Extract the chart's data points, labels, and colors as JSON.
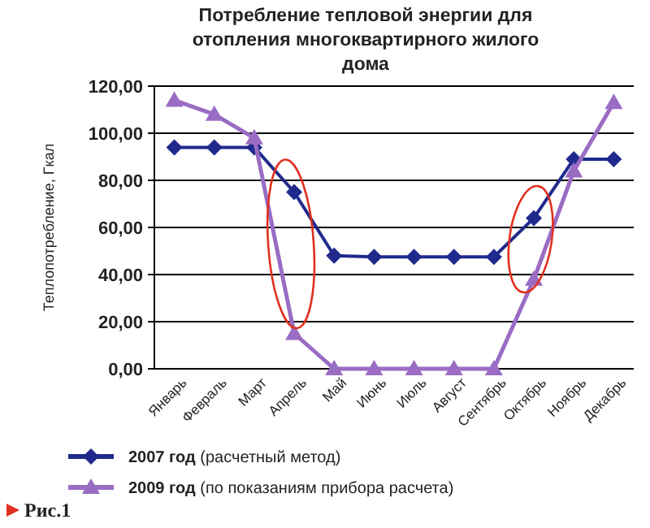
{
  "chart_data": {
    "type": "line",
    "title": "Потребление тепловой энергии для отопления многоквартирного жилого дома",
    "ylabel": "Теплопотребление, Гкал",
    "categories": [
      "Январь",
      "Февраль",
      "Март",
      "Апрель",
      "Май",
      "Июнь",
      "Июль",
      "Август",
      "Сентябрь",
      "Октябрь",
      "Ноябрь",
      "Декабрь"
    ],
    "series": [
      {
        "name": "2007 год (расчетный метод)",
        "color": "#1f2a8c",
        "marker": "diamond",
        "values": [
          94,
          94,
          94,
          75,
          48,
          47.5,
          47.5,
          47.5,
          47.5,
          64,
          89,
          89
        ]
      },
      {
        "name": "2009 год (по показаниям прибора расчета)",
        "color": "#9a6cc4",
        "marker": "triangle",
        "values": [
          114,
          108,
          98,
          15,
          0,
          0,
          0,
          0,
          0,
          38,
          84,
          113
        ]
      }
    ],
    "ylim": [
      0,
      120
    ],
    "yticks": [
      {
        "value": 0,
        "label": "0,00"
      },
      {
        "value": 20,
        "label": "20,00"
      },
      {
        "value": 40,
        "label": "40,00"
      },
      {
        "value": 60,
        "label": "60,00"
      },
      {
        "value": 80,
        "label": "80,00"
      },
      {
        "value": 100,
        "label": "100,00"
      },
      {
        "value": 120,
        "label": "120,00"
      }
    ],
    "grid": "y",
    "legend": "bottom",
    "annotations": [
      "Рис.1"
    ]
  }
}
